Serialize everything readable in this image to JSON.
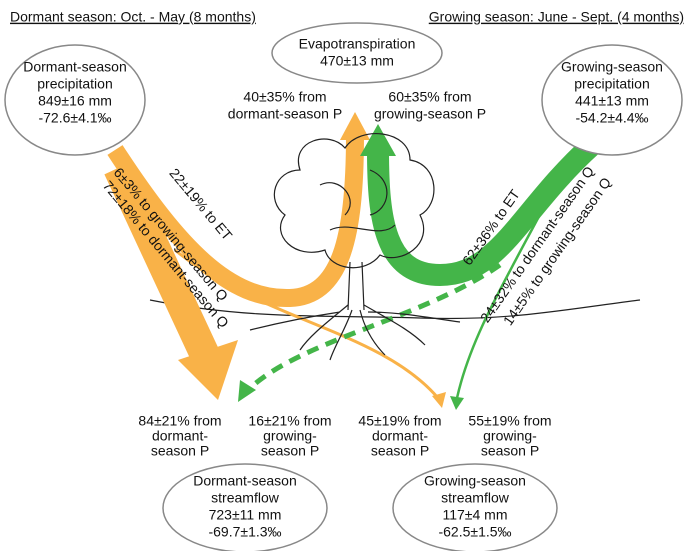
{
  "header": {
    "dormant": "Dormant season: Oct. - May (8 months)",
    "growing": "Growing season: June - Sept. (4 months)"
  },
  "nodes": [
    {
      "lines": [
        "Dormant-season",
        "precipitation",
        "849±16 mm",
        "-72.6±4.1‰"
      ]
    },
    {
      "lines": [
        "Evapotranspiration",
        "470±13 mm"
      ]
    },
    {
      "lines": [
        "Growing-season",
        "precipitation",
        "441±13 mm",
        "-54.2±4.4‰"
      ]
    },
    {
      "lines": [
        "Dormant-season",
        "streamflow",
        "723±11 mm",
        "-69.7±1.3‰"
      ]
    },
    {
      "lines": [
        "Growing-season",
        "streamflow",
        "117±4 mm",
        "-62.5±1.5‰"
      ]
    }
  ],
  "et_sources": [
    {
      "lines": [
        "40±35% from",
        "dormant-season P"
      ]
    },
    {
      "lines": [
        "60±35% from",
        "growing-season P"
      ]
    }
  ],
  "flows": [
    "22±19% to ET",
    "6±3% to growing-season Q",
    "72±18% to dormant-season Q",
    "62±36% to ET",
    "24±32% to dormant-season Q",
    "14±5% to growing-season Q"
  ],
  "q_sources": [
    {
      "lines": [
        "84±21% from",
        "dormant-",
        "season P"
      ]
    },
    {
      "lines": [
        "16±21% from",
        "growing-",
        "season P"
      ]
    },
    {
      "lines": [
        "45±19% from",
        "dormant-",
        "season P"
      ]
    },
    {
      "lines": [
        "55±19% from",
        "growing-",
        "season P"
      ]
    }
  ]
}
